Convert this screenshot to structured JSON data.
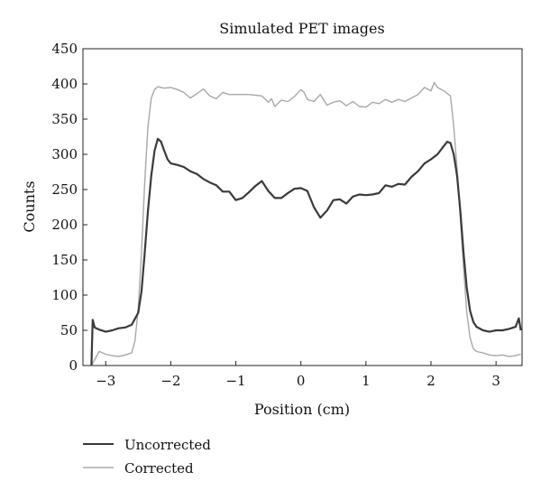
{
  "chart_data": {
    "type": "line",
    "title": "Simulated PET images",
    "xlabel": "Position (cm)",
    "ylabel": "Counts",
    "xlim": [
      -3.35,
      3.4
    ],
    "ylim": [
      0,
      450
    ],
    "xticks": [
      -3,
      -2,
      -1,
      0,
      1,
      2,
      3
    ],
    "xtick_labels": [
      "−3",
      "−2",
      "−1",
      "0",
      "1",
      "2",
      "3"
    ],
    "yticks": [
      0,
      50,
      100,
      150,
      200,
      250,
      300,
      350,
      400,
      450
    ],
    "ytick_labels": [
      "0",
      "50",
      "100",
      "150",
      "200",
      "250",
      "300",
      "350",
      "400",
      "450"
    ],
    "grid": false,
    "legend_position": "bottom-left, below plot",
    "series": [
      {
        "name": "Uncorrected",
        "color": "#3a3a3a",
        "points": [
          [
            -3.22,
            0
          ],
          [
            -3.2,
            65
          ],
          [
            -3.17,
            54
          ],
          [
            -3.1,
            51
          ],
          [
            -3.0,
            48
          ],
          [
            -2.9,
            50
          ],
          [
            -2.8,
            53
          ],
          [
            -2.7,
            54
          ],
          [
            -2.6,
            58
          ],
          [
            -2.5,
            75
          ],
          [
            -2.45,
            105
          ],
          [
            -2.4,
            160
          ],
          [
            -2.35,
            220
          ],
          [
            -2.3,
            270
          ],
          [
            -2.25,
            305
          ],
          [
            -2.2,
            322
          ],
          [
            -2.15,
            318
          ],
          [
            -2.1,
            305
          ],
          [
            -2.05,
            293
          ],
          [
            -2.0,
            287
          ],
          [
            -1.9,
            285
          ],
          [
            -1.8,
            282
          ],
          [
            -1.7,
            276
          ],
          [
            -1.6,
            272
          ],
          [
            -1.5,
            265
          ],
          [
            -1.4,
            260
          ],
          [
            -1.3,
            256
          ],
          [
            -1.2,
            247
          ],
          [
            -1.1,
            247
          ],
          [
            -1.0,
            235
          ],
          [
            -0.9,
            238
          ],
          [
            -0.8,
            246
          ],
          [
            -0.7,
            255
          ],
          [
            -0.6,
            262
          ],
          [
            -0.5,
            248
          ],
          [
            -0.4,
            238
          ],
          [
            -0.3,
            238
          ],
          [
            -0.2,
            245
          ],
          [
            -0.1,
            251
          ],
          [
            0.0,
            252
          ],
          [
            0.1,
            248
          ],
          [
            0.2,
            225
          ],
          [
            0.3,
            210
          ],
          [
            0.4,
            220
          ],
          [
            0.5,
            235
          ],
          [
            0.6,
            236
          ],
          [
            0.7,
            230
          ],
          [
            0.8,
            240
          ],
          [
            0.9,
            243
          ],
          [
            1.0,
            242
          ],
          [
            1.1,
            243
          ],
          [
            1.2,
            245
          ],
          [
            1.3,
            256
          ],
          [
            1.4,
            254
          ],
          [
            1.5,
            258
          ],
          [
            1.6,
            257
          ],
          [
            1.7,
            268
          ],
          [
            1.8,
            276
          ],
          [
            1.9,
            287
          ],
          [
            2.0,
            293
          ],
          [
            2.1,
            300
          ],
          [
            2.2,
            312
          ],
          [
            2.25,
            318
          ],
          [
            2.3,
            316
          ],
          [
            2.35,
            300
          ],
          [
            2.4,
            270
          ],
          [
            2.45,
            220
          ],
          [
            2.5,
            160
          ],
          [
            2.55,
            110
          ],
          [
            2.6,
            78
          ],
          [
            2.65,
            62
          ],
          [
            2.7,
            55
          ],
          [
            2.8,
            50
          ],
          [
            2.9,
            48
          ],
          [
            3.0,
            50
          ],
          [
            3.1,
            50
          ],
          [
            3.2,
            52
          ],
          [
            3.3,
            55
          ],
          [
            3.35,
            67
          ],
          [
            3.38,
            50
          ]
        ]
      },
      {
        "name": "Corrected",
        "color": "#a8a8a8",
        "points": [
          [
            -3.22,
            0
          ],
          [
            -3.1,
            20
          ],
          [
            -3.0,
            16
          ],
          [
            -2.9,
            14
          ],
          [
            -2.8,
            13
          ],
          [
            -2.7,
            15
          ],
          [
            -2.6,
            18
          ],
          [
            -2.55,
            35
          ],
          [
            -2.5,
            80
          ],
          [
            -2.45,
            160
          ],
          [
            -2.4,
            260
          ],
          [
            -2.35,
            340
          ],
          [
            -2.3,
            380
          ],
          [
            -2.25,
            392
          ],
          [
            -2.2,
            396
          ],
          [
            -2.1,
            394
          ],
          [
            -2.0,
            395
          ],
          [
            -1.9,
            392
          ],
          [
            -1.8,
            388
          ],
          [
            -1.7,
            380
          ],
          [
            -1.6,
            386
          ],
          [
            -1.5,
            393
          ],
          [
            -1.4,
            383
          ],
          [
            -1.3,
            379
          ],
          [
            -1.2,
            388
          ],
          [
            -1.1,
            385
          ],
          [
            -1.0,
            385
          ],
          [
            -0.9,
            385
          ],
          [
            -0.8,
            385
          ],
          [
            -0.7,
            384
          ],
          [
            -0.6,
            383
          ],
          [
            -0.5,
            374
          ],
          [
            -0.45,
            379
          ],
          [
            -0.4,
            368
          ],
          [
            -0.3,
            377
          ],
          [
            -0.2,
            375
          ],
          [
            -0.1,
            382
          ],
          [
            0.0,
            392
          ],
          [
            0.05,
            388
          ],
          [
            0.1,
            378
          ],
          [
            0.2,
            375
          ],
          [
            0.3,
            385
          ],
          [
            0.4,
            370
          ],
          [
            0.5,
            374
          ],
          [
            0.6,
            376
          ],
          [
            0.7,
            369
          ],
          [
            0.8,
            375
          ],
          [
            0.9,
            368
          ],
          [
            1.0,
            367
          ],
          [
            1.1,
            374
          ],
          [
            1.2,
            372
          ],
          [
            1.3,
            378
          ],
          [
            1.4,
            374
          ],
          [
            1.5,
            378
          ],
          [
            1.6,
            375
          ],
          [
            1.7,
            380
          ],
          [
            1.8,
            385
          ],
          [
            1.9,
            395
          ],
          [
            2.0,
            390
          ],
          [
            2.05,
            402
          ],
          [
            2.1,
            395
          ],
          [
            2.2,
            390
          ],
          [
            2.3,
            383
          ],
          [
            2.35,
            340
          ],
          [
            2.4,
            280
          ],
          [
            2.45,
            210
          ],
          [
            2.5,
            140
          ],
          [
            2.55,
            75
          ],
          [
            2.6,
            40
          ],
          [
            2.65,
            24
          ],
          [
            2.7,
            20
          ],
          [
            2.8,
            18
          ],
          [
            2.9,
            15
          ],
          [
            3.0,
            14
          ],
          [
            3.1,
            15
          ],
          [
            3.2,
            13
          ],
          [
            3.3,
            14
          ],
          [
            3.38,
            16
          ]
        ]
      }
    ]
  }
}
